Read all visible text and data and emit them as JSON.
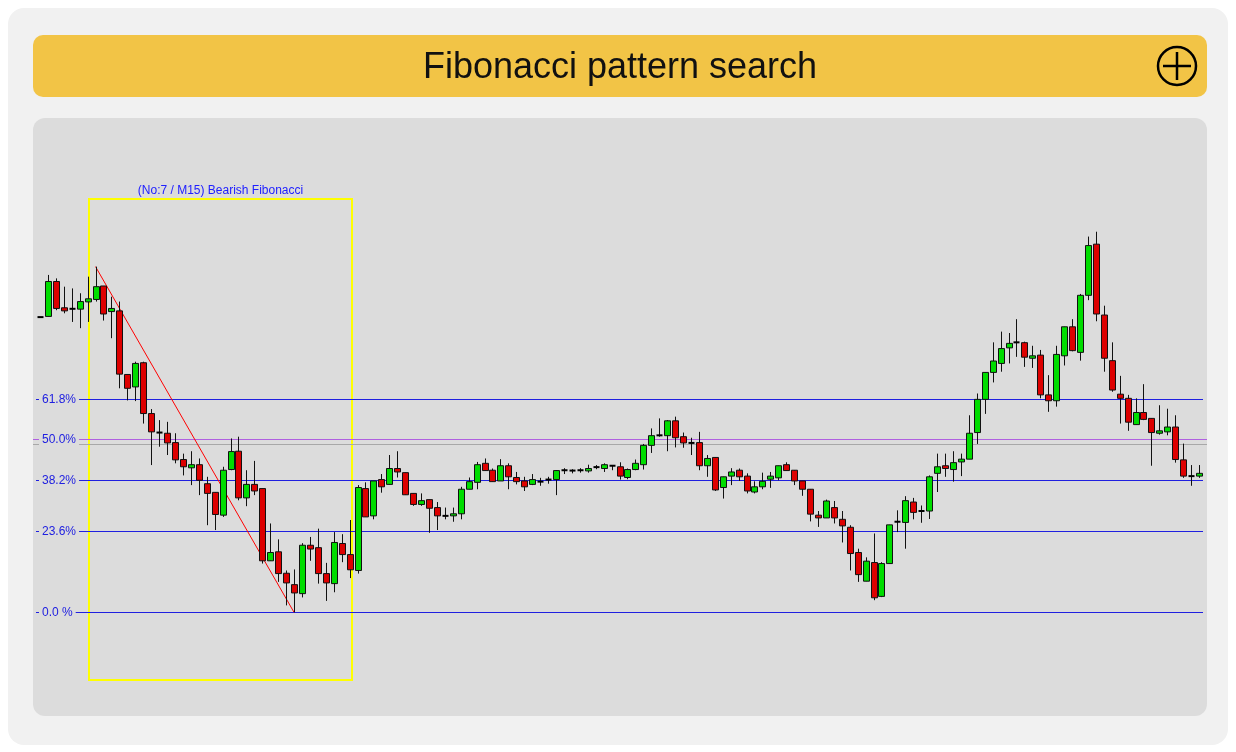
{
  "chart_data": {
    "type": "candlestick",
    "title": "Fibonacci pattern search",
    "tick_labels": "y",
    "grid": "y",
    "ylim": [
      -30,
      143
    ],
    "yticks": [
      {
        "value": 61.8,
        "label": "61.8%"
      },
      {
        "value": 50,
        "label": "50.0%"
      },
      {
        "value": 38.2,
        "label": "38.2%"
      },
      {
        "value": 23.6,
        "label": "23.6%"
      },
      {
        "value": 0,
        "label": "0.0 %"
      }
    ],
    "categories": [
      null,
      null,
      null,
      null,
      null,
      null,
      null,
      null,
      null,
      null,
      null,
      null,
      null,
      null,
      null,
      null,
      null,
      null,
      null,
      null,
      null,
      null,
      null,
      null,
      null,
      null,
      null,
      null,
      null,
      null,
      null,
      null,
      null,
      null,
      null,
      null,
      null,
      null,
      null,
      null,
      null,
      null,
      null,
      null,
      null,
      null,
      null,
      null,
      null,
      null,
      null,
      null,
      null,
      null,
      null,
      null,
      null,
      null,
      null,
      null,
      null,
      null,
      null,
      null,
      null,
      null,
      null,
      null,
      null,
      null,
      null,
      null,
      null,
      null,
      null,
      null,
      null,
      null,
      null,
      null,
      null,
      null,
      null,
      null,
      null,
      null,
      null,
      null,
      null,
      null,
      null,
      null,
      null,
      null,
      null,
      null,
      null,
      null,
      null,
      null,
      null,
      null,
      null,
      null,
      null,
      null,
      null,
      null,
      null,
      null,
      null,
      null,
      null,
      null,
      null,
      null,
      null,
      null,
      null,
      null,
      null,
      null,
      null,
      null,
      null,
      null,
      null,
      null,
      null,
      null,
      null,
      null,
      null,
      null,
      null,
      null,
      null,
      null,
      null,
      null,
      null,
      null,
      null,
      null,
      null,
      null,
      null
    ],
    "ohlc": [
      [
        85.4,
        85.4,
        85.4,
        85.4
      ],
      [
        85.6,
        97.6,
        85.6,
        95.7
      ],
      [
        95.7,
        96.6,
        87.4,
        87.9
      ],
      [
        88.1,
        94.2,
        86.5,
        87.2
      ],
      [
        87.8,
        93.7,
        84.0,
        87.8
      ],
      [
        87.7,
        92.3,
        82.2,
        89.9
      ],
      [
        89.8,
        97.1,
        84.0,
        90.7
      ],
      [
        90.5,
        100,
        89.9,
        94.2
      ],
      [
        94.4,
        94.4,
        84.4,
        86.3
      ],
      [
        87.0,
        91.3,
        79.3,
        87.9
      ],
      [
        87.2,
        89.9,
        64.8,
        68.9
      ],
      [
        68.8,
        68.8,
        61.3,
        64.8
      ],
      [
        65.2,
        72.5,
        61.1,
        72.0
      ],
      [
        72.2,
        72.5,
        54.6,
        57.5
      ],
      [
        57.5,
        58.8,
        42.6,
        52.2
      ],
      [
        52.0,
        55.6,
        47.9,
        52.0
      ],
      [
        51.8,
        55.1,
        45.5,
        49.0
      ],
      [
        49.1,
        51.8,
        43.1,
        44.1
      ],
      [
        44.2,
        45.9,
        39.6,
        42.1
      ],
      [
        41.8,
        46.6,
        36.8,
        42.7
      ],
      [
        42.7,
        44.5,
        33.9,
        38.2
      ],
      [
        37.2,
        39.2,
        25.2,
        34.4
      ],
      [
        34.7,
        34.7,
        23.8,
        28.3
      ],
      [
        28.1,
        42.1,
        27.6,
        41.1
      ],
      [
        41.3,
        50.3,
        41.1,
        46.5
      ],
      [
        46.6,
        50.8,
        32.4,
        33.1
      ],
      [
        33.1,
        41.1,
        30.7,
        37.0
      ],
      [
        37.0,
        43.8,
        33.9,
        35.1
      ],
      [
        35.8,
        35.8,
        14.1,
        14.9
      ],
      [
        14.9,
        25.7,
        14.9,
        17.3
      ],
      [
        17.5,
        21.1,
        8.8,
        11.2
      ],
      [
        11.3,
        12.1,
        2.0,
        8.5
      ],
      [
        8.0,
        12.4,
        0,
        5.6
      ],
      [
        5.4,
        20.0,
        4.3,
        19.4
      ],
      [
        19.4,
        21.8,
        14.9,
        18.3
      ],
      [
        18.7,
        24.2,
        8.3,
        11.2
      ],
      [
        11.2,
        14.3,
        3.3,
        8.5
      ],
      [
        8.3,
        23.2,
        5.8,
        20.2
      ],
      [
        19.9,
        22.6,
        14.5,
        16.7
      ],
      [
        16.7,
        26.7,
        9.9,
        12.3
      ],
      [
        12.1,
        36.8,
        11.2,
        36.1
      ],
      [
        35.8,
        37.6,
        27.6,
        27.6
      ],
      [
        27.9,
        38.0,
        26.9,
        38.0
      ],
      [
        38.4,
        40.0,
        34.6,
        36.3
      ],
      [
        37.0,
        45.5,
        37.0,
        41.6
      ],
      [
        41.6,
        46.6,
        39.0,
        40.6
      ],
      [
        40.4,
        40.4,
        34.0,
        34.0
      ],
      [
        34.4,
        34.4,
        30.8,
        31.2
      ],
      [
        31.2,
        34.4,
        30.8,
        32.3
      ],
      [
        32.6,
        32.6,
        23.0,
        30.1
      ],
      [
        30.3,
        31.9,
        23.8,
        27.9
      ],
      [
        27.9,
        30.3,
        26.9,
        27.9
      ],
      [
        27.9,
        30.3,
        26.2,
        28.5
      ],
      [
        28.5,
        36.3,
        26.9,
        35.6
      ],
      [
        35.6,
        39.0,
        35.6,
        37.8
      ],
      [
        37.6,
        43.5,
        35.6,
        42.7
      ],
      [
        43.1,
        44.5,
        41.0,
        41.0
      ],
      [
        41.1,
        41.6,
        37.8,
        37.8
      ],
      [
        38.0,
        44.3,
        38.0,
        42.4
      ],
      [
        42.4,
        43.1,
        35.6,
        39.2
      ],
      [
        39.0,
        40.6,
        37.0,
        37.8
      ],
      [
        38.0,
        39.2,
        35.1,
        36.3
      ],
      [
        37.0,
        40.0,
        36.8,
        38.4
      ],
      [
        37.8,
        38.9,
        36.6,
        37.8
      ],
      [
        38.4,
        39.2,
        37.2,
        38.4
      ],
      [
        38.4,
        41.1,
        33.9,
        41.0
      ],
      [
        41.1,
        41.7,
        40.0,
        41.1
      ],
      [
        41.0,
        41.4,
        40.2,
        41.0
      ],
      [
        41.1,
        41.7,
        40.4,
        41.1
      ],
      [
        40.9,
        42.7,
        40.4,
        41.6
      ],
      [
        42.0,
        42.6,
        41.4,
        42.0
      ],
      [
        41.6,
        43.1,
        40.6,
        42.7
      ],
      [
        42.4,
        42.4,
        41.1,
        42.4
      ],
      [
        42.1,
        43.4,
        38.4,
        39.4
      ],
      [
        39.0,
        41.6,
        38.5,
        41.3
      ],
      [
        41.3,
        44.2,
        41.1,
        43.1
      ],
      [
        42.7,
        48.7,
        41.3,
        48.3
      ],
      [
        48.3,
        53.2,
        46.1,
        51.1
      ],
      [
        51.2,
        56.1,
        50.8,
        51.2
      ],
      [
        51.1,
        55.6,
        46.6,
        55.4
      ],
      [
        55.4,
        56.6,
        47.7,
        50.5
      ],
      [
        50.8,
        52.0,
        47.6,
        49.0
      ],
      [
        49.0,
        50.5,
        45.5,
        49.0
      ],
      [
        49.1,
        52.2,
        41.1,
        42.4
      ],
      [
        42.4,
        45.5,
        39.2,
        44.5
      ],
      [
        44.8,
        44.9,
        35.1,
        35.4
      ],
      [
        36.1,
        39.2,
        32.9,
        39.2
      ],
      [
        39.4,
        41.7,
        36.8,
        40.6
      ],
      [
        41.1,
        41.6,
        38.0,
        39.2
      ],
      [
        39.4,
        40.2,
        34.4,
        35.1
      ],
      [
        34.8,
        37.9,
        34.4,
        36.3
      ],
      [
        36.3,
        40.4,
        35.6,
        37.9
      ],
      [
        38.5,
        40.6,
        36.0,
        39.4
      ],
      [
        38.9,
        42.4,
        38.2,
        42.4
      ],
      [
        42.7,
        43.4,
        41.0,
        41.0
      ],
      [
        41.1,
        41.1,
        36.8,
        38.0
      ],
      [
        38.0,
        38.0,
        33.7,
        35.6
      ],
      [
        35.6,
        35.6,
        26.3,
        28.4
      ],
      [
        28.1,
        29.3,
        24.7,
        27.3
      ],
      [
        27.3,
        32.6,
        27.3,
        32.2
      ],
      [
        30.3,
        32.2,
        25.7,
        27.3
      ],
      [
        26.9,
        29.3,
        20.2,
        25.0
      ],
      [
        24.6,
        25.2,
        12.1,
        17.0
      ],
      [
        17.3,
        18.4,
        8.8,
        10.9
      ],
      [
        9.0,
        15.9,
        9.0,
        14.8
      ],
      [
        14.4,
        22.8,
        3.5,
        4.2
      ],
      [
        4.6,
        14.5,
        4.4,
        14.1
      ],
      [
        14.1,
        25.3,
        14.1,
        25.3
      ],
      [
        26.2,
        29.5,
        23.2,
        26.2
      ],
      [
        26.0,
        33.6,
        18.4,
        32.3
      ],
      [
        31.9,
        33.1,
        26.9,
        28.9
      ],
      [
        29.3,
        30.9,
        25.9,
        29.3
      ],
      [
        29.3,
        39.6,
        27.0,
        39.2
      ],
      [
        40.2,
        45.9,
        34.8,
        42.1
      ],
      [
        42.4,
        45.9,
        39.2,
        41.6
      ],
      [
        41.3,
        46.6,
        37.8,
        43.3
      ],
      [
        43.5,
        45.9,
        39.4,
        44.3
      ],
      [
        44.3,
        57.0,
        44.3,
        51.8
      ],
      [
        52.0,
        63.3,
        48.7,
        61.6
      ],
      [
        61.6,
        69.4,
        57.4,
        69.4
      ],
      [
        69.4,
        78.1,
        66.5,
        72.7
      ],
      [
        72.0,
        81.2,
        69.6,
        76.3
      ],
      [
        76.5,
        80.8,
        72.0,
        77.8
      ],
      [
        78.1,
        84.8,
        73.9,
        78.1
      ],
      [
        78.0,
        78.3,
        71.0,
        73.8
      ],
      [
        73.5,
        77.1,
        70.7,
        74.2
      ],
      [
        74.4,
        75.9,
        61.9,
        62.9
      ],
      [
        62.9,
        68.6,
        58.0,
        61.2
      ],
      [
        61.2,
        77.1,
        59.5,
        74.6
      ],
      [
        74.2,
        82.6,
        71.4,
        82.6
      ],
      [
        82.6,
        84.8,
        75.5,
        75.7
      ],
      [
        75.2,
        92.1,
        72.8,
        91.7
      ],
      [
        91.7,
        108.7,
        90.3,
        106.1
      ],
      [
        106.5,
        110.1,
        84.2,
        86.3
      ],
      [
        86.0,
        88.7,
        69.6,
        73.5
      ],
      [
        72.8,
        78.1,
        63.8,
        64.3
      ],
      [
        63.1,
        68.4,
        54.6,
        61.9
      ],
      [
        61.9,
        62.9,
        52.5,
        55.0
      ],
      [
        54.3,
        61.9,
        54.3,
        57.8
      ],
      [
        57.8,
        66.0,
        55.6,
        55.8
      ],
      [
        56.1,
        56.1,
        42.4,
        52.0
      ],
      [
        51.8,
        59.9,
        51.4,
        52.5
      ],
      [
        52.2,
        58.9,
        51.2,
        53.6
      ],
      [
        53.6,
        57.0,
        43.3,
        44.2
      ],
      [
        44.1,
        48.8,
        38.9,
        39.4
      ],
      [
        39.4,
        42.6,
        36.6,
        39.4
      ],
      [
        39.4,
        42.6,
        38.9,
        40.2
      ]
    ],
    "colors": [
      "#000000",
      "#00dd00",
      "#dd0000",
      "#dd0000",
      "#000000",
      "#00dd00",
      "#00dd00",
      "#00dd00",
      "#dd0000",
      "#00dd00",
      "#dd0000",
      "#dd0000",
      "#00dd00",
      "#dd0000",
      "#dd0000",
      "#000000",
      "#dd0000",
      "#dd0000",
      "#dd0000",
      "#00dd00",
      "#dd0000",
      "#dd0000",
      "#dd0000",
      "#00dd00",
      "#00dd00",
      "#dd0000",
      "#00dd00",
      "#dd0000",
      "#dd0000",
      "#00dd00",
      "#dd0000",
      "#dd0000",
      "#dd0000",
      "#00dd00",
      "#dd0000",
      "#dd0000",
      "#dd0000",
      "#00dd00",
      "#dd0000",
      "#dd0000",
      "#00dd00",
      "#dd0000",
      "#00dd00",
      "#dd0000",
      "#00dd00",
      "#dd0000",
      "#dd0000",
      "#dd0000",
      "#00dd00",
      "#dd0000",
      "#dd0000",
      "#000000",
      "#00dd00",
      "#00dd00",
      "#00dd00",
      "#00dd00",
      "#dd0000",
      "#dd0000",
      "#00dd00",
      "#dd0000",
      "#dd0000",
      "#dd0000",
      "#00dd00",
      "#000000",
      "#000000",
      "#00dd00",
      "#000000",
      "#000000",
      "#000000",
      "#00dd00",
      "#000000",
      "#00dd00",
      "#000000",
      "#dd0000",
      "#00dd00",
      "#00dd00",
      "#00dd00",
      "#00dd00",
      "#000000",
      "#00dd00",
      "#dd0000",
      "#dd0000",
      "#000000",
      "#dd0000",
      "#00dd00",
      "#dd0000",
      "#00dd00",
      "#00dd00",
      "#dd0000",
      "#dd0000",
      "#00dd00",
      "#00dd00",
      "#00dd00",
      "#00dd00",
      "#dd0000",
      "#dd0000",
      "#dd0000",
      "#dd0000",
      "#dd0000",
      "#00dd00",
      "#dd0000",
      "#dd0000",
      "#dd0000",
      "#dd0000",
      "#00dd00",
      "#dd0000",
      "#00dd00",
      "#00dd00",
      "#000000",
      "#00dd00",
      "#dd0000",
      "#000000",
      "#00dd00",
      "#00dd00",
      "#dd0000",
      "#00dd00",
      "#00dd00",
      "#00dd00",
      "#00dd00",
      "#00dd00",
      "#00dd00",
      "#00dd00",
      "#00dd00",
      "#000000",
      "#dd0000",
      "#00dd00",
      "#dd0000",
      "#dd0000",
      "#00dd00",
      "#00dd00",
      "#dd0000",
      "#00dd00",
      "#00dd00",
      "#dd0000",
      "#dd0000",
      "#dd0000",
      "#dd0000",
      "#dd0000",
      "#00dd00",
      "#dd0000",
      "#dd0000",
      "#00dd00",
      "#00dd00",
      "#dd0000",
      "#dd0000",
      "#000000",
      "#00dd00"
    ],
    "series": [
      {
        "type": "line",
        "color": "#ff0000",
        "values": [
          null,
          null,
          null,
          null,
          null,
          null,
          null,
          100,
          null,
          null,
          null,
          null,
          null,
          null,
          null,
          null,
          null,
          null,
          null,
          null,
          null,
          null,
          null,
          null,
          null,
          null,
          null,
          null,
          null,
          null,
          null,
          null,
          0,
          null,
          null,
          null,
          null,
          null,
          null,
          null,
          null,
          null,
          null,
          null,
          null,
          null,
          null,
          null,
          null,
          null,
          null,
          null,
          null,
          null,
          null,
          null,
          null,
          null,
          null,
          null,
          null,
          null,
          null,
          null,
          null,
          null,
          null,
          null,
          null,
          null,
          null,
          null,
          null,
          null,
          null,
          null,
          null,
          null,
          null,
          null,
          null,
          null,
          null,
          null,
          null,
          null,
          null,
          null,
          null,
          null,
          null,
          null,
          null,
          null,
          null,
          null,
          null,
          null,
          null,
          null,
          null,
          null,
          null,
          null,
          null,
          null,
          null,
          null,
          null,
          null,
          null,
          null,
          null,
          null,
          null,
          null,
          null,
          null,
          null,
          null,
          null,
          null,
          null,
          null,
          null,
          null,
          null,
          null,
          null,
          null,
          null,
          null,
          null,
          null,
          null,
          null,
          null,
          null,
          null,
          null,
          null,
          null,
          null,
          null,
          null,
          null,
          null
        ]
      }
    ],
    "ref_lines": [
      {
        "axis": "y",
        "value": 50.1,
        "color": "#b060e0"
      },
      {
        "axis": "y",
        "value": 48.7,
        "color": "#a8a8a8"
      }
    ],
    "annotations": [
      "(No:7 / M15) Bearish Fibonacci"
    ]
  }
}
